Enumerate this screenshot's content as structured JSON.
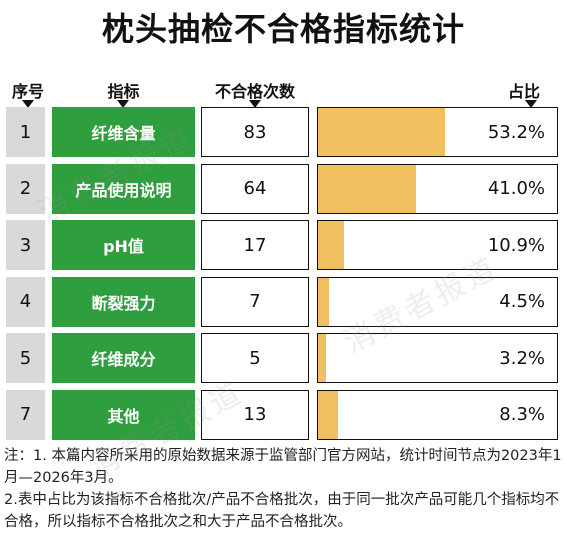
{
  "title": "枕头抽检不合格指标统计",
  "columns": {
    "seq": "序号",
    "indicator": "指标",
    "count": "不合格次数",
    "share": "占比"
  },
  "colors": {
    "indicator_bg": "#2e9e3e",
    "bar_fill": "#f0c060",
    "seq_bg": "#d9d9d9"
  },
  "rows": [
    {
      "seq": "1",
      "indicator": "纤维含量",
      "count": "83",
      "share_label": "53.2%",
      "share": 53.2
    },
    {
      "seq": "2",
      "indicator": "产品使用说明",
      "count": "64",
      "share_label": "41.0%",
      "share": 41.0
    },
    {
      "seq": "3",
      "indicator": "pH值",
      "count": "17",
      "share_label": "10.9%",
      "share": 10.9
    },
    {
      "seq": "4",
      "indicator": "断裂强力",
      "count": "7",
      "share_label": "4.5%",
      "share": 4.5
    },
    {
      "seq": "5",
      "indicator": "纤维成分",
      "count": "5",
      "share_label": "3.2%",
      "share": 3.2
    },
    {
      "seq": "7",
      "indicator": "其他",
      "count": "13",
      "share_label": "8.3%",
      "share": 8.3
    }
  ],
  "chart_data": {
    "type": "table",
    "title": "枕头抽检不合格指标统计",
    "columns": [
      "序号",
      "指标",
      "不合格次数",
      "占比"
    ],
    "categories": [
      "纤维含量",
      "产品使用说明",
      "pH值",
      "断裂强力",
      "纤维成分",
      "其他"
    ],
    "series": [
      {
        "name": "不合格次数",
        "values": [
          83,
          64,
          17,
          7,
          5,
          13
        ]
      },
      {
        "name": "占比",
        "values": [
          53.2,
          41.0,
          10.9,
          4.5,
          3.2,
          8.3
        ]
      }
    ]
  },
  "notes": {
    "note1": "注：1. 本篇内容所采用的原始数据来源于监管部门官方网站，统计时间节点为2023年1月—2026年3月。",
    "note2": "2.表中占比为该指标不合格批次/产品不合格批次，由于同一批次产品可能几个指标均不合格，所以指标不合格批次之和大于产品不合格批次。"
  },
  "watermark": "消费者报道"
}
